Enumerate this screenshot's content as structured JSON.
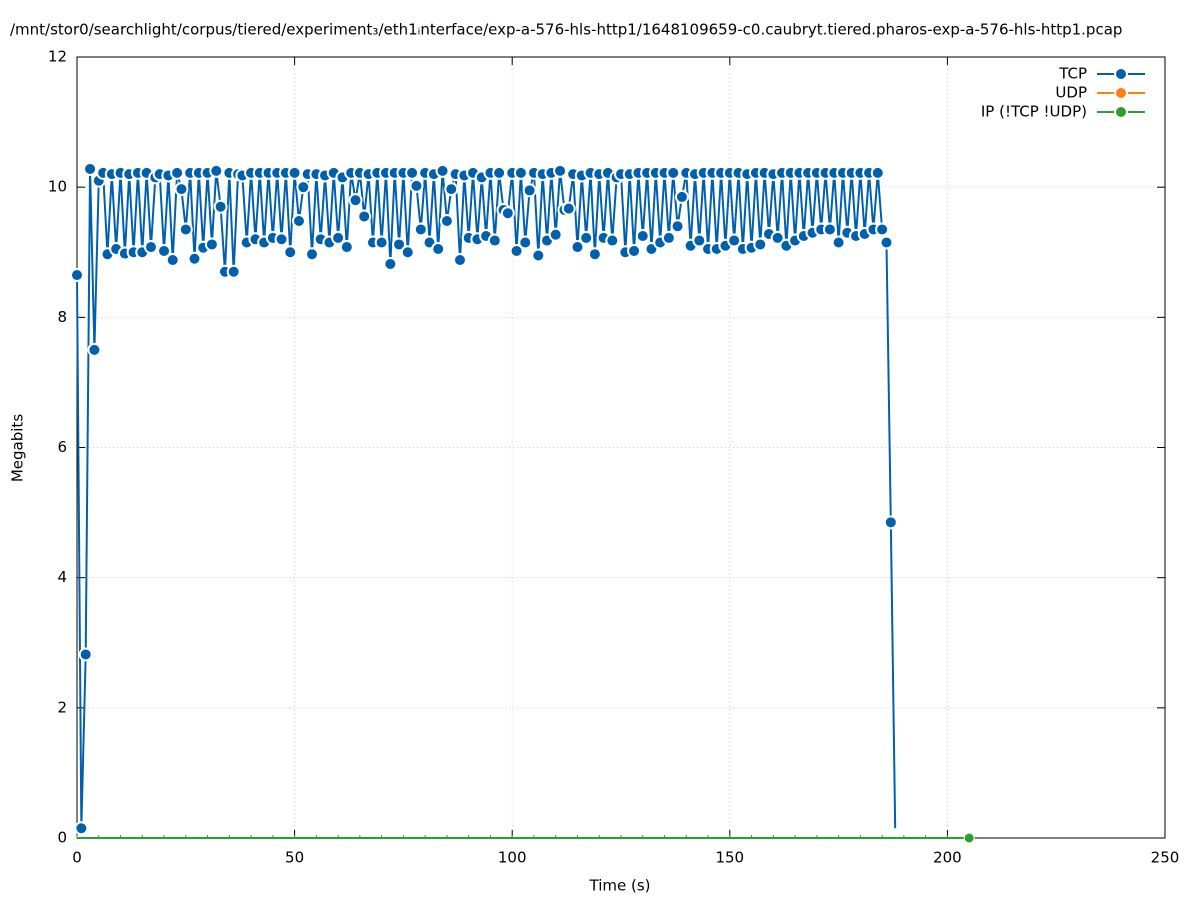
{
  "chart_data": {
    "type": "line",
    "title": "/mnt/stor0/searchlight/corpus/tiered/experiment₃/eth1ᵢnterface/exp-a-576-hls-http1/1648109659-c0.caubryt.tiered.pharos-exp-a-576-hls-http1.pcap",
    "xlabel": "Time (s)",
    "ylabel": "Megabits",
    "xlim": [
      0,
      250
    ],
    "xticks": [
      0,
      50,
      100,
      150,
      200,
      250
    ],
    "ylim": [
      0,
      12
    ],
    "yticks": [
      0,
      2,
      4,
      6,
      8,
      10,
      12
    ],
    "grid": true,
    "legend": "top-right",
    "series": [
      {
        "name": "TCP",
        "color": "#0060ad",
        "x": [
          0,
          1,
          2,
          3,
          4,
          5,
          6,
          7,
          8,
          9,
          10,
          11,
          12,
          13,
          14,
          15,
          16,
          17,
          18,
          19,
          20,
          21,
          22,
          23,
          24,
          25,
          26,
          27,
          28,
          29,
          30,
          31,
          32,
          33,
          34,
          35,
          36,
          37,
          38,
          39,
          40,
          41,
          42,
          43,
          44,
          45,
          46,
          47,
          48,
          49,
          50,
          51,
          52,
          53,
          54,
          55,
          56,
          57,
          58,
          59,
          60,
          61,
          62,
          63,
          64,
          65,
          66,
          67,
          68,
          69,
          70,
          71,
          72,
          73,
          74,
          75,
          76,
          77,
          78,
          79,
          80,
          81,
          82,
          83,
          84,
          85,
          86,
          87,
          88,
          89,
          90,
          91,
          92,
          93,
          94,
          95,
          96,
          97,
          98,
          99,
          100,
          101,
          102,
          103,
          104,
          105,
          106,
          107,
          108,
          109,
          110,
          111,
          112,
          113,
          114,
          115,
          116,
          117,
          118,
          119,
          120,
          121,
          122,
          123,
          124,
          125,
          126,
          127,
          128,
          129,
          130,
          131,
          132,
          133,
          134,
          135,
          136,
          137,
          138,
          139,
          140,
          141,
          142,
          143,
          144,
          145,
          146,
          147,
          148,
          149,
          150,
          151,
          152,
          153,
          154,
          155,
          156,
          157,
          158,
          159,
          160,
          161,
          162,
          163,
          164,
          165,
          166,
          167,
          168,
          169,
          170,
          171,
          172,
          173,
          174,
          175,
          176,
          177,
          178,
          179,
          180,
          181,
          182,
          183,
          184,
          185,
          186,
          187,
          188
        ],
        "values": [
          8.65,
          0.15,
          2.82,
          10.28,
          7.5,
          10.1,
          10.22,
          8.97,
          10.2,
          9.05,
          10.22,
          8.98,
          10.2,
          9.0,
          10.22,
          9.0,
          10.22,
          9.08,
          10.15,
          10.2,
          9.02,
          10.18,
          8.88,
          10.22,
          9.97,
          9.35,
          10.22,
          8.9,
          10.22,
          9.07,
          10.22,
          9.12,
          10.25,
          9.7,
          8.7,
          10.22,
          8.7,
          10.2,
          10.18,
          9.15,
          10.22,
          9.2,
          10.22,
          9.15,
          10.22,
          9.22,
          10.22,
          9.2,
          10.22,
          9.0,
          10.22,
          9.48,
          10.0,
          10.2,
          8.97,
          10.2,
          9.2,
          10.18,
          9.15,
          10.22,
          9.22,
          10.15,
          9.08,
          10.22,
          9.8,
          10.22,
          9.55,
          10.2,
          9.15,
          10.22,
          9.15,
          10.22,
          8.82,
          10.22,
          9.12,
          10.22,
          9.0,
          10.22,
          10.02,
          9.35,
          10.22,
          9.15,
          10.2,
          9.05,
          10.25,
          9.48,
          9.97,
          10.2,
          8.88,
          10.18,
          9.22,
          10.22,
          9.2,
          10.15,
          9.25,
          10.22,
          9.18,
          10.22,
          9.65,
          9.6,
          10.22,
          9.02,
          10.22,
          9.15,
          9.95,
          10.22,
          8.95,
          10.2,
          9.18,
          10.22,
          9.27,
          10.25,
          9.65,
          9.67,
          10.2,
          9.08,
          10.18,
          9.22,
          10.22,
          8.97,
          10.2,
          9.22,
          10.22,
          9.18,
          10.15,
          10.2,
          9.0,
          10.2,
          9.02,
          10.22,
          9.25,
          10.22,
          9.05,
          10.22,
          9.15,
          10.22,
          9.22,
          10.22,
          9.4,
          9.85,
          10.22,
          9.1,
          10.2,
          9.18,
          10.22,
          9.05,
          10.22,
          9.05,
          10.22,
          9.1,
          10.22,
          9.18,
          10.22,
          9.05,
          10.2,
          9.07,
          10.22,
          9.12,
          10.22,
          9.28,
          10.2,
          9.22,
          10.22,
          9.1,
          10.22,
          9.18,
          10.22,
          9.25,
          10.22,
          9.3,
          10.22,
          9.35,
          10.22,
          9.35,
          10.22,
          9.15,
          10.22,
          9.3,
          10.22,
          9.25,
          10.22,
          9.28,
          10.22,
          9.35,
          10.22,
          9.35,
          9.15,
          4.85,
          0.15
        ]
      },
      {
        "name": "UDP",
        "color": "#ff7f0e",
        "x": [],
        "values": []
      },
      {
        "name": "IP (!TCP  !UDP)",
        "color": "#2ca02c",
        "x": [
          0,
          5,
          10,
          15,
          20,
          25,
          30,
          35,
          40,
          45,
          50,
          55,
          60,
          65,
          70,
          75,
          80,
          85,
          90,
          95,
          100,
          105,
          110,
          115,
          120,
          125,
          130,
          135,
          140,
          145,
          150,
          155,
          160,
          165,
          170,
          175,
          180,
          185,
          190,
          195,
          200,
          205
        ],
        "values": [
          0,
          0,
          0,
          0,
          0,
          0,
          0,
          0,
          0,
          0,
          0,
          0,
          0,
          0,
          0,
          0,
          0,
          0,
          0,
          0,
          0,
          0,
          0,
          0,
          0,
          0,
          0,
          0,
          0,
          0,
          0,
          0,
          0,
          0,
          0,
          0,
          0,
          0,
          0,
          0,
          0,
          0
        ]
      }
    ]
  }
}
